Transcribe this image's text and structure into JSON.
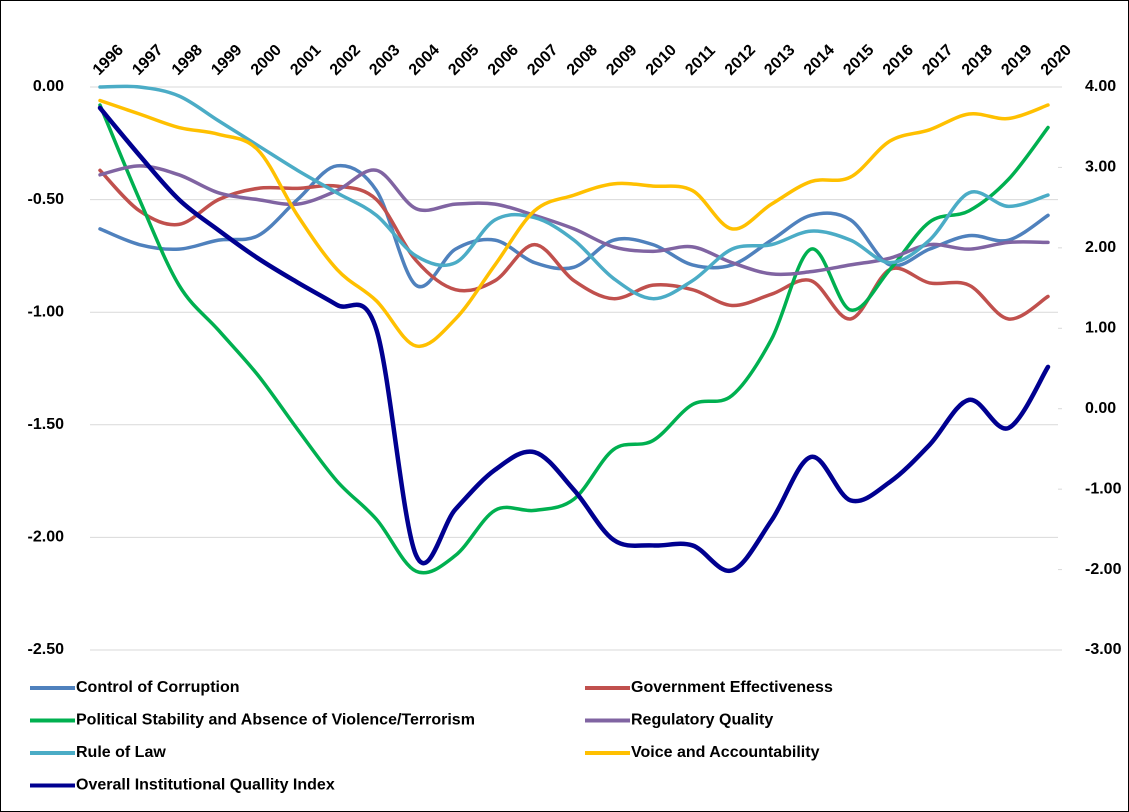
{
  "chart_data": {
    "type": "line",
    "categories": [
      "1996",
      "1997",
      "1998",
      "1999",
      "2000",
      "2001",
      "2002",
      "2003",
      "2004",
      "2005",
      "2006",
      "2007",
      "2008",
      "2009",
      "2010",
      "2011",
      "2012",
      "2013",
      "2014",
      "2015",
      "2016",
      "2017",
      "2018",
      "2019",
      "2020"
    ],
    "ylim": [
      -2.5,
      0
    ],
    "yticks": [
      {
        "value": 0,
        "label": "0.00"
      },
      {
        "value": -0.5,
        "label": "-0.50"
      },
      {
        "value": -1,
        "label": "-1.00"
      },
      {
        "value": -1.5,
        "label": "-1.50"
      },
      {
        "value": -2,
        "label": "-2.00"
      },
      {
        "value": -2.5,
        "label": "-2.50"
      }
    ],
    "y2lim": [
      -3,
      4
    ],
    "y2ticks": [
      {
        "value": 4,
        "label": "4.00"
      },
      {
        "value": 3,
        "label": "3.00"
      },
      {
        "value": 2,
        "label": "2.00"
      },
      {
        "value": 1,
        "label": "1.00"
      },
      {
        "value": 0,
        "label": "0.00"
      },
      {
        "value": -1,
        "label": "-1.00"
      },
      {
        "value": -2,
        "label": "-2.00"
      },
      {
        "value": -3,
        "label": "-3.00"
      }
    ],
    "grid": true,
    "series": [
      {
        "name": "Control of Corruption",
        "color": "#4f81bd",
        "values": [
          -0.63,
          -0.7,
          -0.72,
          -0.68,
          -0.66,
          -0.5,
          -0.35,
          -0.46,
          -0.88,
          -0.72,
          -0.68,
          -0.78,
          -0.8,
          -0.68,
          -0.7,
          -0.79,
          -0.79,
          -0.68,
          -0.57,
          -0.59,
          -0.79,
          -0.72,
          -0.66,
          -0.68,
          -0.57
        ]
      },
      {
        "name": "Government Effectiveness",
        "color": "#c0504d",
        "values": [
          -0.37,
          -0.55,
          -0.61,
          -0.5,
          -0.45,
          -0.45,
          -0.44,
          -0.5,
          -0.77,
          -0.9,
          -0.86,
          -0.7,
          -0.86,
          -0.94,
          -0.88,
          -0.9,
          -0.97,
          -0.92,
          -0.86,
          -1.03,
          -0.81,
          -0.87,
          -0.88,
          -1.03,
          -0.93
        ]
      },
      {
        "name": "Political Stability and Absence of Violence/Terrorism",
        "color": "#00b050",
        "values": [
          -0.08,
          -0.5,
          -0.88,
          -1.08,
          -1.28,
          -1.52,
          -1.75,
          -1.92,
          -2.15,
          -2.08,
          -1.88,
          -1.88,
          -1.83,
          -1.61,
          -1.57,
          -1.41,
          -1.37,
          -1.12,
          -0.72,
          -0.99,
          -0.81,
          -0.6,
          -0.55,
          -0.41,
          -0.18
        ]
      },
      {
        "name": "Regulatory Quality",
        "color": "#8064a2",
        "values": [
          -0.39,
          -0.35,
          -0.39,
          -0.47,
          -0.5,
          -0.52,
          -0.46,
          -0.37,
          -0.54,
          -0.52,
          -0.52,
          -0.57,
          -0.63,
          -0.71,
          -0.73,
          -0.71,
          -0.78,
          -0.83,
          -0.82,
          -0.79,
          -0.76,
          -0.7,
          -0.72,
          -0.69,
          -0.69
        ]
      },
      {
        "name": "Rule of Law",
        "color": "#4bacc6",
        "values": [
          0.0,
          0.0,
          -0.04,
          -0.15,
          -0.26,
          -0.37,
          -0.47,
          -0.57,
          -0.75,
          -0.78,
          -0.59,
          -0.58,
          -0.68,
          -0.85,
          -0.94,
          -0.86,
          -0.72,
          -0.7,
          -0.64,
          -0.68,
          -0.78,
          -0.68,
          -0.47,
          -0.53,
          -0.48
        ]
      },
      {
        "name": "Voice and Accountability",
        "color": "#ffc000",
        "values": [
          -0.06,
          -0.12,
          -0.18,
          -0.21,
          -0.28,
          -0.57,
          -0.81,
          -0.95,
          -1.15,
          -1.03,
          -0.79,
          -0.55,
          -0.48,
          -0.43,
          -0.44,
          -0.46,
          -0.63,
          -0.52,
          -0.42,
          -0.4,
          -0.24,
          -0.19,
          -0.12,
          -0.14,
          -0.08
        ]
      },
      {
        "name": "Overall Institutional Quallity Index",
        "color": "#000090",
        "axis": "y2",
        "values": [
          3.74,
          3.15,
          2.6,
          2.22,
          1.87,
          1.57,
          1.29,
          0.98,
          -1.82,
          -1.25,
          -0.76,
          -0.54,
          -1.01,
          -1.63,
          -1.7,
          -1.7,
          -2.01,
          -1.39,
          -0.6,
          -1.14,
          -0.91,
          -0.45,
          0.11,
          -0.24,
          0.52
        ]
      }
    ]
  }
}
